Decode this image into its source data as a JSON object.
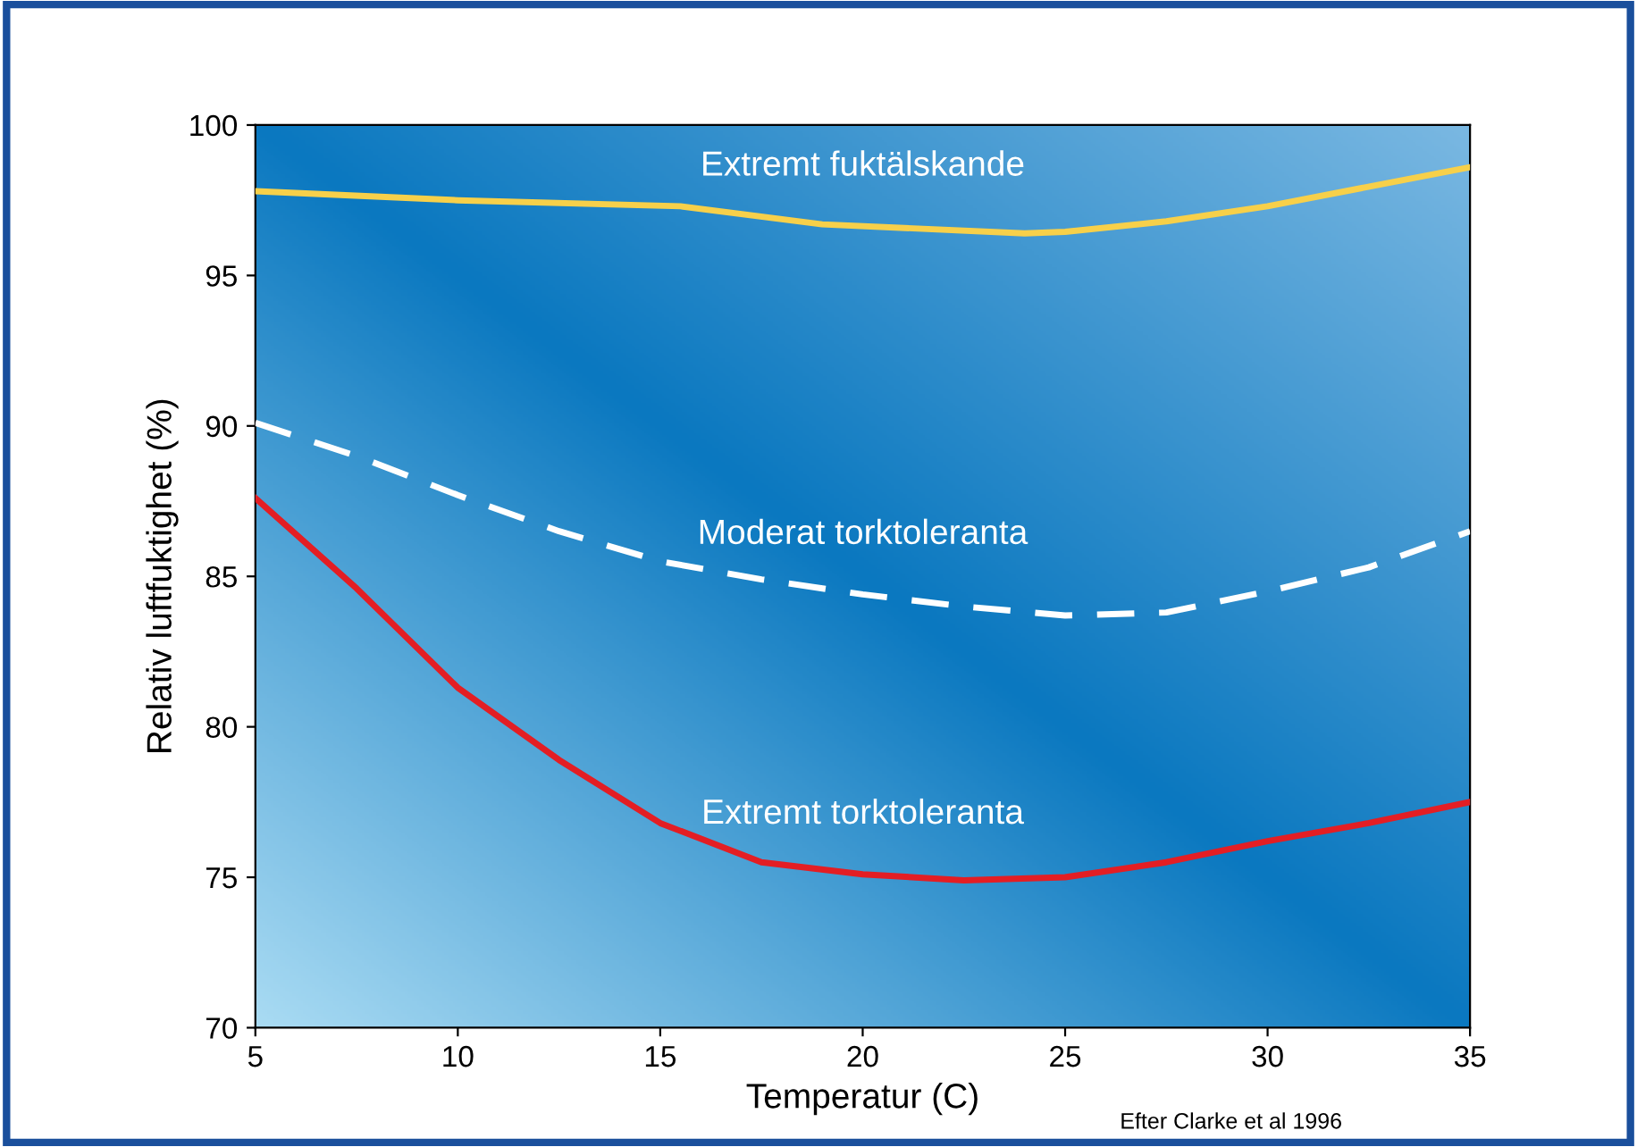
{
  "chart_data": {
    "type": "line",
    "xlabel": "Temperatur (C)",
    "ylabel": "Relativ luftfuktighet (%)",
    "xlim": [
      5,
      35
    ],
    "xticks": [
      5,
      10,
      15,
      20,
      25,
      30,
      35
    ],
    "ylim": [
      70,
      100
    ],
    "yticks": [
      70,
      75,
      80,
      85,
      90,
      95,
      100
    ],
    "grid": false,
    "legend": false,
    "marker": "none",
    "annotations": [
      "Efter Clarke et al 1996"
    ],
    "series": [
      {
        "name": "Extremt fuktälskande",
        "color": "#f7d04a",
        "line_style": "solid",
        "x": [
          5,
          10,
          15.5,
          19,
          24,
          25,
          27.5,
          30,
          35
        ],
        "values": [
          97.8,
          97.5,
          97.3,
          96.7,
          96.4,
          96.45,
          96.8,
          97.3,
          98.6
        ]
      },
      {
        "name": "Moderat torktoleranta",
        "color": "#ffffff",
        "line_style": "dashed",
        "x": [
          5,
          7.5,
          10,
          12.5,
          15,
          17.5,
          20,
          22.5,
          25,
          27.5,
          30,
          32.5,
          35
        ],
        "values": [
          90.1,
          89.0,
          87.7,
          86.5,
          85.5,
          84.9,
          84.4,
          84.0,
          83.7,
          83.8,
          84.5,
          85.3,
          86.5
        ]
      },
      {
        "name": "Extremt torktoleranta",
        "color": "#e31e24",
        "line_style": "solid",
        "x": [
          5,
          7.5,
          10,
          12.5,
          15,
          17.5,
          20,
          22.5,
          25,
          27.5,
          30,
          32.5,
          35
        ],
        "values": [
          87.6,
          84.6,
          81.3,
          78.9,
          76.8,
          75.5,
          75.1,
          74.9,
          75.0,
          75.5,
          76.2,
          76.8,
          77.5
        ]
      }
    ]
  }
}
